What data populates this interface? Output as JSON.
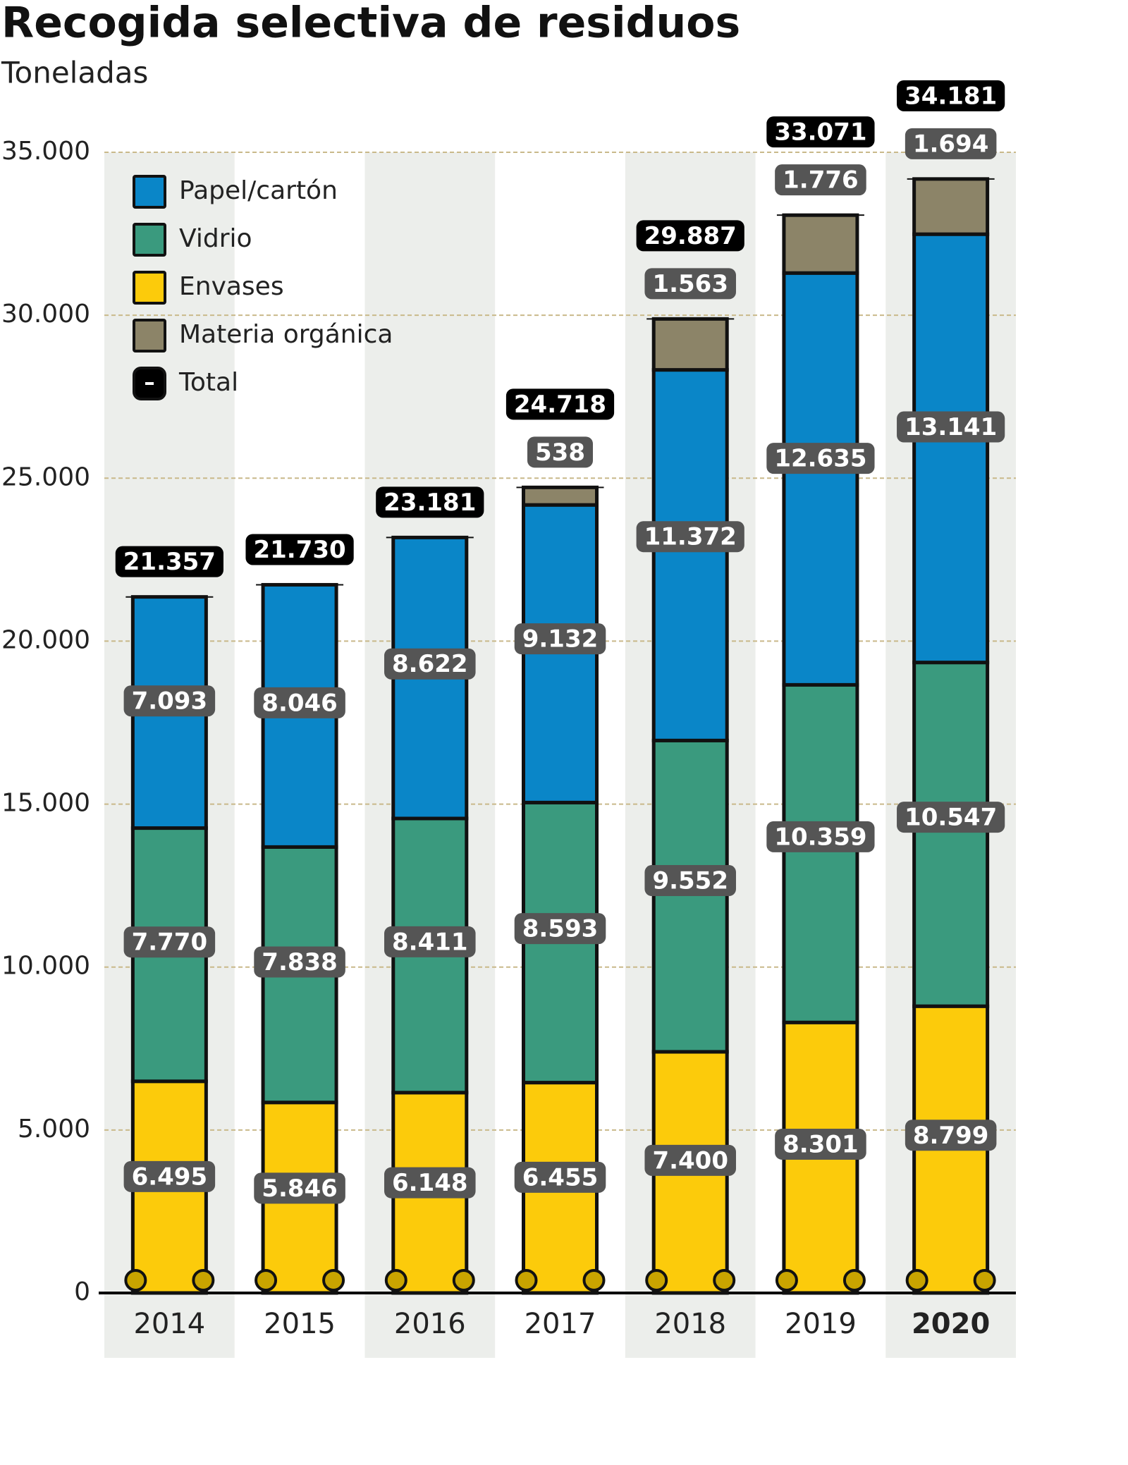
{
  "chart_data": {
    "type": "stacked-bar",
    "title": "Recogida selectiva de residuos",
    "subtitle": "Toneladas",
    "categories": [
      "2014",
      "2015",
      "2016",
      "2017",
      "2018",
      "2019",
      "2020"
    ],
    "series": [
      {
        "name": "Papel/cartón",
        "color": "#0a86c8",
        "values": [
          7093,
          8046,
          8622,
          9132,
          11372,
          12635,
          13141
        ],
        "value_labels": [
          "7.093",
          "8.046",
          "8.622",
          "9.132",
          "11.372",
          "12.635",
          "13.141"
        ]
      },
      {
        "name": "Vidrio",
        "color": "#3a9a7e",
        "values": [
          7770,
          7838,
          8411,
          8593,
          9552,
          10359,
          10547
        ],
        "value_labels": [
          "7.770",
          "7.838",
          "8.411",
          "8.593",
          "9.552",
          "10.359",
          "10.547"
        ]
      },
      {
        "name": "Envases",
        "color": "#fccb0b",
        "values": [
          6495,
          5846,
          6148,
          6455,
          7400,
          8301,
          8799
        ],
        "value_labels": [
          "6.495",
          "5.846",
          "6.148",
          "6.455",
          "7.400",
          "8.301",
          "8.799"
        ]
      },
      {
        "name": "Materia orgánica",
        "color": "#8c8468",
        "values": [
          null,
          null,
          null,
          538,
          1563,
          1776,
          1694
        ],
        "value_labels": [
          null,
          null,
          null,
          "538",
          "1.563",
          "1.776",
          "1.694"
        ]
      },
      {
        "name": "Total",
        "color": "#000000",
        "values": [
          21357,
          21730,
          23181,
          24718,
          29887,
          33071,
          34181
        ],
        "value_labels": [
          "21.357",
          "21.730",
          "23.181",
          "24.718",
          "29.887",
          "33.071",
          "34.181"
        ]
      }
    ],
    "ylim": [
      0,
      35000
    ],
    "yticks": [
      0,
      {
        "value": 5000,
        "label": "5.000"
      },
      {
        "value": 10000,
        "label": "10.000"
      },
      {
        "value": 15000,
        "label": "15.000"
      },
      {
        "value": 20000,
        "label": "20.000"
      },
      {
        "value": 25000,
        "label": "25.000"
      },
      {
        "value": 30000,
        "label": "30.000"
      },
      {
        "value": 35000,
        "label": "35.000"
      }
    ],
    "grid": true
  }
}
